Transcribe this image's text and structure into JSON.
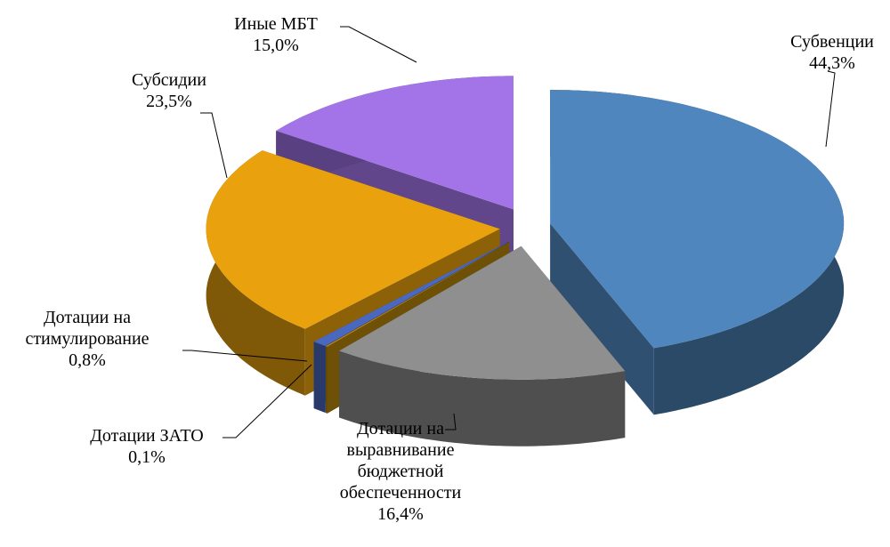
{
  "chart_data": {
    "type": "pie",
    "categories": [
      "Субвенции",
      "Дотации на выравнивание бюджетной обеспеченности",
      "Дотации ЗАТО",
      "Дотации на стимулирование",
      "Субсидии",
      "Иные МБТ"
    ],
    "values": [
      44.3,
      16.4,
      0.1,
      0.8,
      23.5,
      15.0
    ],
    "value_labels": [
      "44,3%",
      "16,4%",
      "0,1%",
      "0,8%",
      "23,5%",
      "15,0%"
    ],
    "colors": [
      "#4f86bd",
      "#8f8f8f",
      "#b8860b",
      "#4a68c0",
      "#e9a20e",
      "#a274e8"
    ]
  }
}
